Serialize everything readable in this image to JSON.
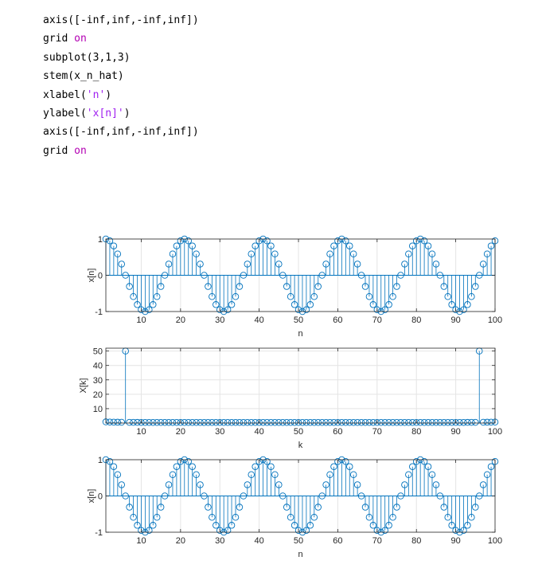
{
  "code_lines": [
    {
      "parts": [
        {
          "text": "axis([-inf,inf,-inf,inf])",
          "kind": "plain"
        }
      ]
    },
    {
      "parts": [
        {
          "text": "grid ",
          "kind": "plain"
        },
        {
          "text": "on",
          "kind": "kw"
        }
      ]
    },
    {
      "parts": [
        {
          "text": "subplot(3,1,3)",
          "kind": "plain"
        }
      ]
    },
    {
      "parts": [
        {
          "text": "stem(x_n_hat)",
          "kind": "plain"
        }
      ]
    },
    {
      "parts": [
        {
          "text": "xlabel(",
          "kind": "plain"
        },
        {
          "text": "'n'",
          "kind": "str"
        },
        {
          "text": ")",
          "kind": "plain"
        }
      ]
    },
    {
      "parts": [
        {
          "text": "ylabel(",
          "kind": "plain"
        },
        {
          "text": "'x[n]'",
          "kind": "str"
        },
        {
          "text": ")",
          "kind": "plain"
        }
      ]
    },
    {
      "parts": [
        {
          "text": "axis([-inf,inf,-inf,inf])",
          "kind": "plain"
        }
      ]
    },
    {
      "parts": [
        {
          "text": "grid ",
          "kind": "plain"
        },
        {
          "text": "on",
          "kind": "kw"
        }
      ]
    }
  ],
  "colors": {
    "stem": "#0072BD",
    "grid": "#e4e4e4",
    "axis": "#262626",
    "keyword": "#b300b3",
    "string": "#a020f0"
  },
  "chart_data": [
    {
      "type": "stem",
      "x": {
        "start": 1,
        "end": 100
      },
      "y_function": "cos(2*pi*(n-1)/20)",
      "title": "",
      "xlabel": "n",
      "ylabel": "x[n]",
      "xlim": [
        1,
        100
      ],
      "ylim": [
        -1,
        1
      ],
      "xticks": [
        10,
        20,
        30,
        40,
        50,
        60,
        70,
        80,
        90,
        100
      ],
      "yticks": [
        -1,
        0,
        1
      ],
      "grid": true
    },
    {
      "type": "stem",
      "x": {
        "start": 1,
        "end": 100
      },
      "y_function": "|DFT of cos(2*pi*(n-1)/20)|",
      "peaks": [
        {
          "k": 6,
          "value": 50
        },
        {
          "k": 96,
          "value": 50
        }
      ],
      "baseline_value": 0.4,
      "title": "",
      "xlabel": "k",
      "ylabel": "X[k]",
      "xlim": [
        1,
        100
      ],
      "ylim": [
        0,
        52
      ],
      "xticks": [
        10,
        20,
        30,
        40,
        50,
        60,
        70,
        80,
        90,
        100
      ],
      "yticks": [
        10,
        20,
        30,
        40,
        50
      ],
      "grid": true
    },
    {
      "type": "stem",
      "x": {
        "start": 1,
        "end": 100
      },
      "y_function": "cos(2*pi*(n-1)/20)",
      "title": "",
      "xlabel": "n",
      "ylabel": "x[n]",
      "xlim": [
        1,
        100
      ],
      "ylim": [
        -1,
        1
      ],
      "xticks": [
        10,
        20,
        30,
        40,
        50,
        60,
        70,
        80,
        90,
        100
      ],
      "yticks": [
        -1,
        0,
        1
      ],
      "grid": true
    }
  ]
}
